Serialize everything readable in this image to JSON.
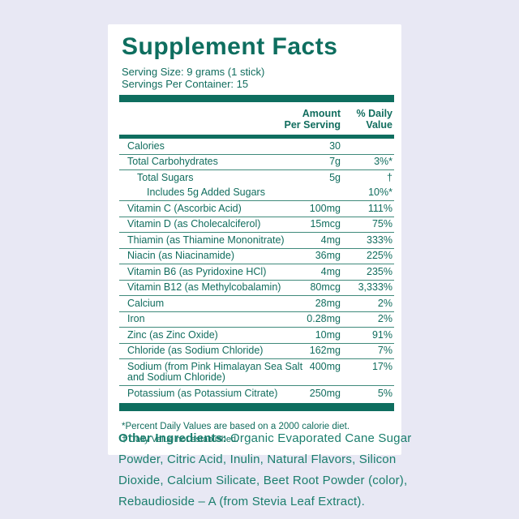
{
  "label": {
    "title": "Supplement Facts",
    "serving_size": "Serving Size: 9 grams (1 stick)",
    "servings_per_container": "Servings Per Container: 15",
    "columns": {
      "amount_line1": "Amount",
      "amount_line2": "Per Serving",
      "dv_line1": "% Daily",
      "dv_line2": "Value"
    },
    "rows": [
      {
        "name": "Calories",
        "amount": "30",
        "dv": ""
      },
      {
        "name": "Total Carbohydrates",
        "amount": "7g",
        "dv": "3%*"
      },
      {
        "name": "Total Sugars",
        "amount": "5g",
        "dv": "†",
        "indent": 1,
        "sub": {
          "name": "Includes 5g Added Sugars",
          "amount": "",
          "dv": "10%*",
          "indent": 2
        }
      },
      {
        "name": "Vitamin C (Ascorbic Acid)",
        "amount": "100mg",
        "dv": "111%"
      },
      {
        "name": "Vitamin D (as Cholecalciferol)",
        "amount": "15mcg",
        "dv": "75%"
      },
      {
        "name": "Thiamin (as Thiamine Mononitrate)",
        "amount": "4mg",
        "dv": "333%"
      },
      {
        "name": "Niacin (as Niacinamide)",
        "amount": "36mg",
        "dv": "225%"
      },
      {
        "name": "Vitamin B6 (as Pyridoxine HCl)",
        "amount": "4mg",
        "dv": "235%"
      },
      {
        "name": "Vitamin B12 (as Methylcobalamin)",
        "amount": "80mcg",
        "dv": "3,333%"
      },
      {
        "name": "Calcium",
        "amount": "28mg",
        "dv": "2%"
      },
      {
        "name": "Iron",
        "amount": "0.28mg",
        "dv": "2%"
      },
      {
        "name": "Zinc (as Zinc Oxide)",
        "amount": "10mg",
        "dv": "91%"
      },
      {
        "name": "Chloride (as Sodium Chloride)",
        "amount": "162mg",
        "dv": "7%"
      },
      {
        "name": "Sodium (from Pink Himalayan Sea Salt",
        "name2": "and Sodium Chloride)",
        "amount": "400mg",
        "dv": "17%"
      },
      {
        "name": "Potassium (as Potassium Citrate)",
        "amount": "250mg",
        "dv": "5%"
      }
    ],
    "footnotes": [
      "*Percent Daily Values are based on a 2000 calorie diet.",
      "† Daily Value not established."
    ]
  },
  "other_ingredients": {
    "label": "Other Ingredients:",
    "first_line_text": "Organic Evaporated Cane Sugar",
    "lines": [
      "Powder, Citric Acid, Inulin, Natural Flavors, Silicon",
      "Dioxide, Calcium Silicate, Beet Root Powder (color),",
      "Rebaudioside – A (from Stevia Leaf Extract)."
    ],
    "full_text": "Organic Evaporated Cane Sugar Powder, Citric Acid, Inulin, Natural Flavors, Silicon Dioxide, Calcium Silicate, Beet Root Powder (color), Rebaudioside – A (from Stevia Leaf Extract)."
  },
  "colors": {
    "background": "#e8e8f4",
    "panel": "#ffffff",
    "teal": "#0e6e5f",
    "teal_text": "#116d5e",
    "separator": "#3f8a7b",
    "ingredients_text": "#1b7e6d"
  }
}
